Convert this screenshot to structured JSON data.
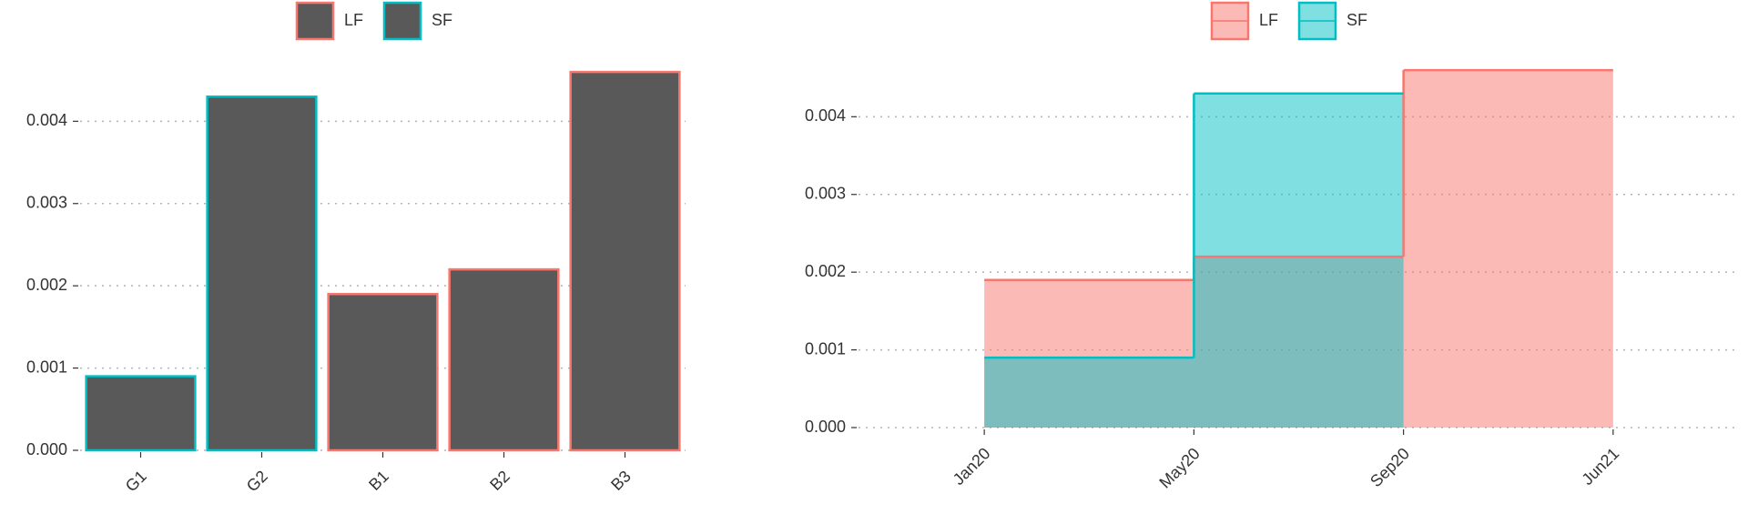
{
  "chart_data": [
    {
      "type": "bar",
      "categories": [
        "G1",
        "G2",
        "B1",
        "B2",
        "B3"
      ],
      "series": [
        {
          "name": "LF",
          "color": "#F8766D",
          "values": [
            null,
            null,
            0.0019,
            0.0022,
            0.0046
          ]
        },
        {
          "name": "SF",
          "color": "#00BFC4",
          "values": [
            0.0009,
            0.0043,
            null,
            null,
            null
          ]
        }
      ],
      "fill": "#595959",
      "ylim": [
        0,
        0.0048
      ],
      "yticks": [
        {
          "value": 0,
          "label": "0.000"
        },
        {
          "value": 0.001,
          "label": "0.001"
        },
        {
          "value": 0.002,
          "label": "0.002"
        },
        {
          "value": 0.003,
          "label": "0.003"
        },
        {
          "value": 0.004,
          "label": "0.004"
        }
      ],
      "grid": true,
      "legend": "top"
    },
    {
      "type": "step-area",
      "x": [
        "Jan20",
        "May20",
        "Sep20",
        "Jun21"
      ],
      "series": [
        {
          "name": "LF",
          "color": "#F8766D",
          "values": [
            0.0019,
            0.0022,
            0.0046,
            null
          ]
        },
        {
          "name": "SF",
          "color": "#00BFC4",
          "values": [
            0.0009,
            0.0043,
            null,
            null
          ]
        }
      ],
      "opacity": 0.5,
      "ylim": [
        0,
        0.0048
      ],
      "yticks": [
        {
          "value": 0,
          "label": "0.000"
        },
        {
          "value": 0.001,
          "label": "0.001"
        },
        {
          "value": 0.002,
          "label": "0.002"
        },
        {
          "value": 0.003,
          "label": "0.003"
        },
        {
          "value": 0.004,
          "label": "0.004"
        }
      ],
      "grid": true,
      "legend": "top"
    }
  ]
}
